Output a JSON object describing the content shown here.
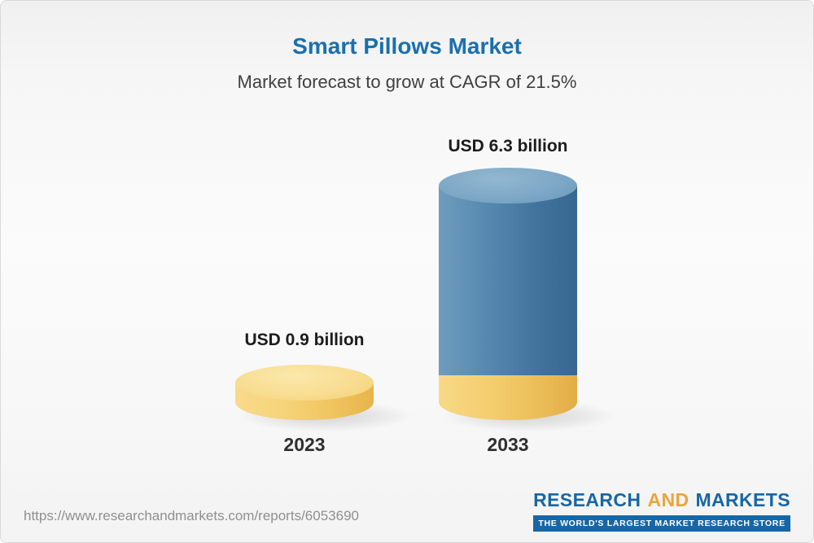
{
  "header": {
    "title": "Smart Pillows Market",
    "subtitle": "Market forecast to grow at CAGR of 21.5%"
  },
  "chart_data": {
    "type": "bar",
    "style": "3d-cylinder",
    "title": "Smart Pillows Market",
    "subtitle": "Market forecast to grow at CAGR of 21.5%",
    "categories": [
      "2023",
      "2033"
    ],
    "values": [
      0.9,
      6.3
    ],
    "unit": "USD billion",
    "value_labels": [
      "USD 0.9 billion",
      "USD 6.3 billion"
    ],
    "cagr_percent": 21.5,
    "legend": false,
    "grid": false,
    "bar_colors": {
      "bar_2023": "#f5cd6d",
      "bar_2033_body": "#4a7ea8",
      "bar_2033_base": "#f0c45f"
    }
  },
  "footer": {
    "url": "https://www.researchandmarkets.com/reports/6053690",
    "logo": {
      "research": "RESEARCH",
      "and": "AND",
      "markets": "MARKETS",
      "tagline": "THE WORLD'S LARGEST MARKET RESEARCH STORE"
    }
  },
  "colors": {
    "accent-blue": "#1a6fb0",
    "logo-blue": "#1767a6",
    "logo-gold": "#e9a63c",
    "url-gray": "#8f8f8f"
  }
}
